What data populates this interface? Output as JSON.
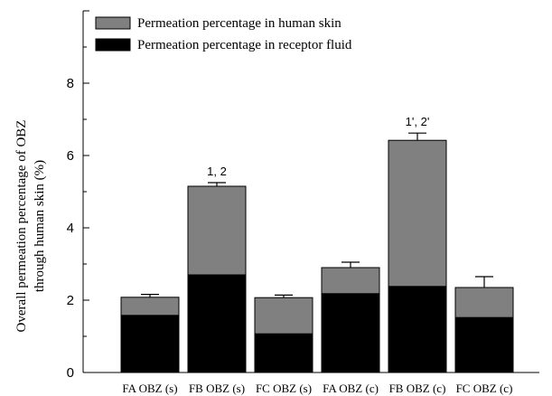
{
  "chart_data": {
    "type": "bar",
    "stacked": true,
    "title": "",
    "xlabel": "",
    "ylabel": "Overall permeation percentage of OBZ through human skin (%)",
    "ylabel_lines": [
      "Overall permeation percentage of OBZ",
      "through human skin (%)"
    ],
    "ylim": [
      0,
      10
    ],
    "yticks": [
      0,
      2,
      4,
      6,
      8
    ],
    "grid": false,
    "legend_position": "top-left",
    "categories": [
      "FA OBZ (s)",
      "FB OBZ (s)",
      "FC OBZ (s)",
      "FA OBZ (c)",
      "FB OBZ (c)",
      "FC OBZ (c)"
    ],
    "series": [
      {
        "name": "Permeation percentage in receptor fluid",
        "color": "#000000",
        "values": [
          1.58,
          2.7,
          1.07,
          2.18,
          2.38,
          1.52
        ]
      },
      {
        "name": "Permeation percentage in human skin",
        "color": "#808080",
        "values": [
          0.5,
          2.45,
          1.0,
          0.72,
          4.04,
          0.83
        ]
      }
    ],
    "error_bars_upper": [
      0.08,
      0.1,
      0.07,
      0.15,
      0.2,
      0.3
    ],
    "annotations": [
      "",
      "1, 2",
      "",
      "",
      "1', 2'",
      ""
    ]
  }
}
